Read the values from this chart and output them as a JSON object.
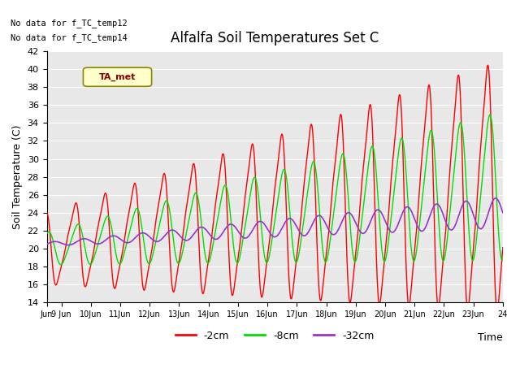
{
  "title": "Alfalfa Soil Temperatures Set C",
  "xlabel": "Time",
  "ylabel": "Soil Temperature (C)",
  "ylim": [
    14,
    42
  ],
  "yticks": [
    14,
    16,
    18,
    20,
    22,
    24,
    26,
    28,
    30,
    32,
    34,
    36,
    38,
    40,
    42
  ],
  "no_data_text": [
    "No data for f_TC_temp12",
    "No data for f_TC_temp14"
  ],
  "legend_label": "TA_met",
  "legend_box_color": "#ffffcc",
  "legend_box_edge": "#999900",
  "colors": {
    "red": "#ff0000",
    "green": "#00dd00",
    "purple": "#9933cc"
  },
  "line_labels": [
    "-2cm",
    "-8cm",
    "-32cm"
  ],
  "background_color": "#e8e8e8",
  "x_start_day": 8.5,
  "x_end_day": 24.0,
  "xtick_labels": [
    "Jun",
    "9 Jun",
    "10Jun",
    "11Jun",
    "12Jun",
    "13Jun",
    "14Jun",
    "15Jun",
    "16Jun",
    "17Jun",
    "18Jun",
    "19Jun",
    "20Jun",
    "21Jun",
    "22Jun",
    "23Jun",
    "24"
  ],
  "xtick_positions": [
    8.5,
    9,
    10,
    11,
    12,
    13,
    14,
    15,
    16,
    17,
    18,
    19,
    20,
    21,
    22,
    23,
    24
  ]
}
